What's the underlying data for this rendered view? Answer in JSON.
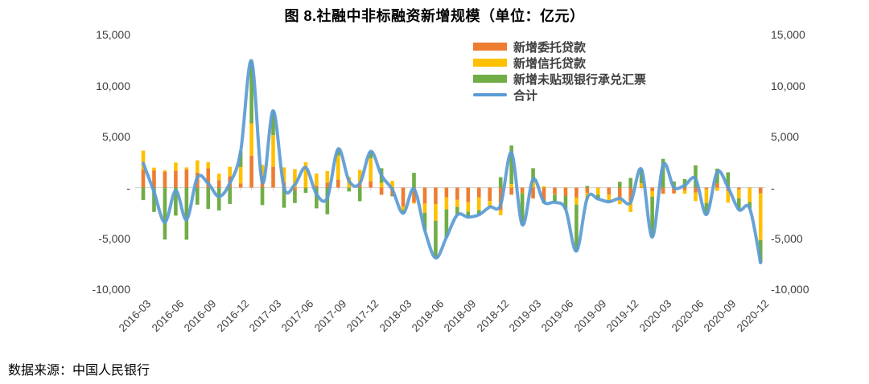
{
  "title": "图 8.社融中非标融资新增规模（单位：亿元）",
  "source_note": "数据来源：中国人民银行",
  "legend": [
    {
      "label": "新增委托贷款",
      "color": "#ED7D31",
      "type": "bar"
    },
    {
      "label": "新增信托贷款",
      "color": "#FFC000",
      "type": "bar"
    },
    {
      "label": "新增未贴现银行承兑汇票",
      "color": "#70AD47",
      "type": "bar"
    },
    {
      "label": "合计",
      "color": "#5B9BD5",
      "type": "line"
    }
  ],
  "y_axis": {
    "labels": [
      "15,000",
      "10,000",
      "5,000",
      "-",
      "-5,000",
      "-10,000"
    ],
    "values": [
      15000,
      10000,
      5000,
      0,
      -5000,
      -10000
    ]
  },
  "chart_data": {
    "type": "combo: stacked-bar + smooth line",
    "unit": "亿元",
    "ylim": [
      -10000,
      15000
    ],
    "grid": false,
    "legend_position": "top-center",
    "x": [
      "2016-03",
      "2016-04",
      "2016-05",
      "2016-06",
      "2016-07",
      "2016-08",
      "2016-09",
      "2016-10",
      "2016-11",
      "2016-12",
      "2017-01",
      "2017-02",
      "2017-03",
      "2017-04",
      "2017-05",
      "2017-06",
      "2017-07",
      "2017-08",
      "2017-09",
      "2017-10",
      "2017-11",
      "2017-12",
      "2018-01",
      "2018-02",
      "2018-03",
      "2018-04",
      "2018-05",
      "2018-06",
      "2018-07",
      "2018-08",
      "2018-09",
      "2018-10",
      "2018-11",
      "2018-12",
      "2019-01",
      "2019-02",
      "2019-03",
      "2019-04",
      "2019-05",
      "2019-06",
      "2019-07",
      "2019-08",
      "2019-09",
      "2019-10",
      "2019-11",
      "2019-12",
      "2020-01",
      "2020-02",
      "2020-03",
      "2020-04",
      "2020-05",
      "2020-06",
      "2020-07",
      "2020-08",
      "2020-09",
      "2020-10",
      "2020-11",
      "2020-12"
    ],
    "x_tick_labels": [
      "2016-03",
      "2016-06",
      "2016-09",
      "2016-12",
      "2017-03",
      "2017-06",
      "2017-09",
      "2017-12",
      "2018-03",
      "2018-06",
      "2018-09",
      "2018-12",
      "2019-03",
      "2019-06",
      "2019-09",
      "2019-12",
      "2020-03",
      "2020-06",
      "2020-09",
      "2020-12"
    ],
    "series": [
      {
        "name": "新增委托贷款",
        "kind": "bar",
        "values": [
          1780,
          1690,
          1570,
          1650,
          1770,
          1470,
          1900,
          730,
          1110,
          410,
          3140,
          1170,
          2040,
          510,
          -280,
          -30,
          160,
          480,
          780,
          20,
          310,
          620,
          -710,
          -750,
          -1850,
          -1480,
          -1570,
          -1640,
          -950,
          -1210,
          -1440,
          -950,
          -1310,
          -2210,
          -700,
          -510,
          -1070,
          -1200,
          -630,
          -830,
          -990,
          -510,
          -20,
          -670,
          -960,
          -1320,
          -30,
          -360,
          -590,
          -580,
          -270,
          -480,
          -150,
          420,
          -320,
          -170,
          -30,
          -560
        ]
      },
      {
        "name": "新增信托贷款",
        "kind": "bar",
        "values": [
          1850,
          270,
          120,
          810,
          210,
          1210,
          600,
          640,
          930,
          1610,
          3170,
          1060,
          3110,
          1470,
          1810,
          2490,
          1230,
          1140,
          2370,
          1030,
          1430,
          2250,
          460,
          660,
          -360,
          -90,
          -900,
          -1620,
          -1190,
          -690,
          -910,
          -1270,
          -470,
          -510,
          340,
          -40,
          530,
          130,
          -50,
          20,
          -680,
          -660,
          -670,
          -620,
          -670,
          -1090,
          430,
          -540,
          -20,
          20,
          -340,
          -850,
          -1370,
          -320,
          -1160,
          -880,
          -1390,
          -4600
        ]
      },
      {
        "name": "新增未贴现银行承兑汇票",
        "kind": "bar",
        "values": [
          -1230,
          -2390,
          -5100,
          -2750,
          -5120,
          -1680,
          -2100,
          -2250,
          -1610,
          1550,
          6130,
          -1720,
          2390,
          -1980,
          -1240,
          -490,
          -2040,
          -2620,
          640,
          -380,
          -1340,
          680,
          1440,
          -110,
          -320,
          1450,
          -1740,
          -3650,
          -2740,
          -780,
          -550,
          -450,
          -130,
          1020,
          3790,
          -3100,
          1370,
          -360,
          -770,
          -1310,
          -4560,
          160,
          -430,
          -100,
          570,
          950,
          1400,
          -3960,
          2820,
          580,
          840,
          2190,
          -1130,
          1440,
          1500,
          -1120,
          -630,
          -2220
        ]
      },
      {
        "name": "合计",
        "kind": "line",
        "values": [
          2400,
          -430,
          -3410,
          -290,
          -3140,
          1000,
          400,
          -880,
          430,
          3570,
          12440,
          510,
          7540,
          0,
          290,
          1970,
          -650,
          -1000,
          3790,
          670,
          400,
          3550,
          1190,
          -200,
          -2530,
          -120,
          -4210,
          -6910,
          -4880,
          -2680,
          -2900,
          -2670,
          -1910,
          -1700,
          3430,
          -3650,
          830,
          -1430,
          -1450,
          -2120,
          -6230,
          -1010,
          -1120,
          -1390,
          -1060,
          -1460,
          1800,
          -4860,
          2210,
          20,
          230,
          860,
          -2650,
          1540,
          20,
          -2170,
          -2050,
          -7380
        ]
      }
    ]
  }
}
